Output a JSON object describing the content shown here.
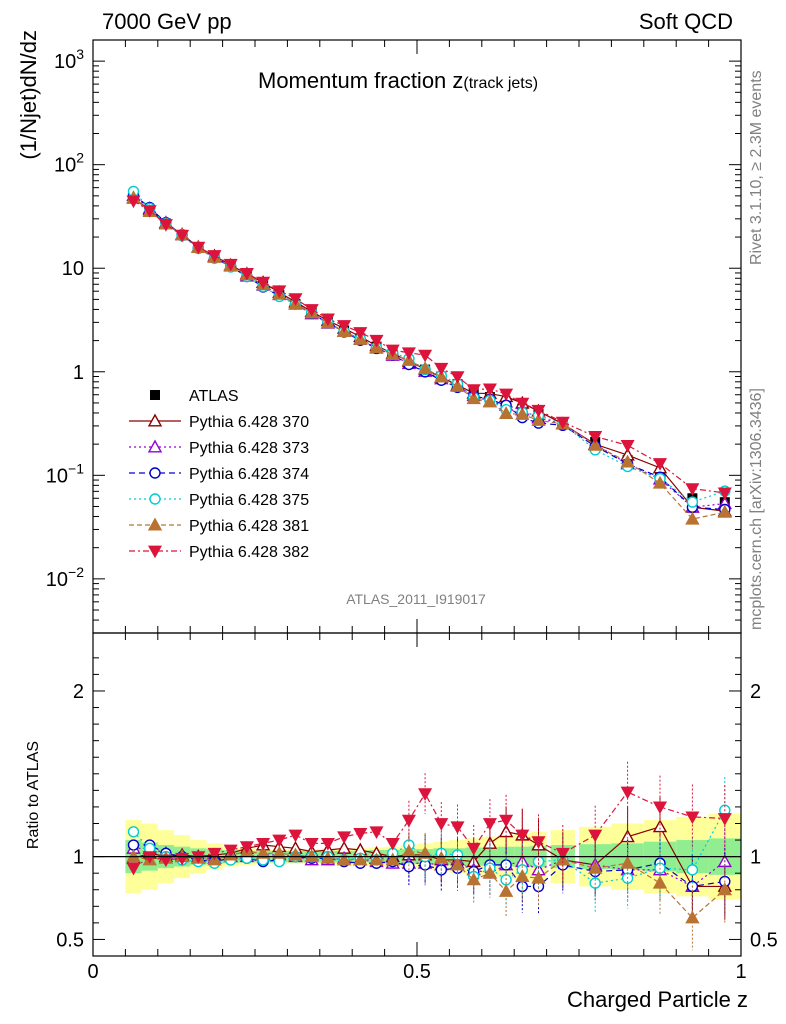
{
  "header": {
    "left": "7000 GeV pp",
    "right": "Soft QCD"
  },
  "side": {
    "rivet": "Rivet 3.1.10, ≥ 2.3M events",
    "source": "mcplots.cern.ch [arXiv:1306.3436]"
  },
  "chart_data": [
    {
      "type": "scatter",
      "panel": "main",
      "title_main": "Momentum fraction z",
      "title_sub": "(track jets)",
      "ylabel": "(1/Njet)dN/dz",
      "yscale": "log",
      "ylim": [
        0.003,
        1600
      ],
      "xlim": [
        0,
        1.0
      ],
      "y_ticks": [
        {
          "v": 0.01,
          "base": "10",
          "exp": "−2"
        },
        {
          "v": 0.1,
          "base": "10",
          "exp": "−1"
        },
        {
          "v": 1,
          "base": "1",
          "exp": ""
        },
        {
          "v": 10,
          "base": "10",
          "exp": ""
        },
        {
          "v": 100,
          "base": "10",
          "exp": "2"
        },
        {
          "v": 1000,
          "base": "10",
          "exp": "3"
        }
      ],
      "watermark": "ATLAS_2011_I919017",
      "x": [
        0.0625,
        0.0875,
        0.1125,
        0.1375,
        0.1625,
        0.1875,
        0.2125,
        0.2375,
        0.2625,
        0.2875,
        0.3125,
        0.3375,
        0.3625,
        0.3875,
        0.4125,
        0.4375,
        0.4625,
        0.4875,
        0.5125,
        0.5375,
        0.5625,
        0.5875,
        0.6125,
        0.6375,
        0.6625,
        0.6875,
        0.725,
        0.775,
        0.825,
        0.875,
        0.925,
        0.975
      ],
      "data": {
        "name": "ATLAS",
        "values": [
          48.0,
          36.0,
          27.0,
          21.0,
          16.0,
          13.0,
          10.5,
          8.4,
          6.8,
          5.5,
          4.5,
          3.7,
          3.0,
          2.5,
          2.1,
          1.75,
          1.5,
          1.25,
          1.05,
          0.9,
          0.76,
          0.64,
          0.57,
          0.5,
          0.44,
          0.39,
          0.32,
          0.21,
          0.14,
          0.1,
          0.06,
          0.055
        ],
        "band_inner": [
          0.1,
          0.085,
          0.07,
          0.06,
          0.05,
          0.045,
          0.04,
          0.035,
          0.035,
          0.035,
          0.035,
          0.035,
          0.035,
          0.035,
          0.035,
          0.04,
          0.04,
          0.045,
          0.045,
          0.05,
          0.05,
          0.055,
          0.055,
          0.06,
          0.06,
          0.065,
          0.07,
          0.075,
          0.08,
          0.09,
          0.1,
          0.11
        ],
        "band_outer": [
          0.22,
          0.2,
          0.16,
          0.13,
          0.1,
          0.08,
          0.06,
          0.05,
          0.045,
          0.045,
          0.045,
          0.045,
          0.045,
          0.05,
          0.05,
          0.055,
          0.06,
          0.07,
          0.08,
          0.09,
          0.1,
          0.11,
          0.12,
          0.13,
          0.14,
          0.15,
          0.16,
          0.18,
          0.2,
          0.22,
          0.24,
          0.26
        ]
      },
      "series": [
        {
          "name": "Pythia 6.428 370",
          "color": "#8b0000",
          "marker": "triangle-open",
          "dash": "",
          "ratio": [
            0.99,
            1.02,
            1.0,
            1.01,
            1.0,
            1.01,
            1.02,
            1.05,
            1.07,
            1.06,
            1.05,
            1.03,
            1.04,
            1.05,
            1.04,
            1.02,
            1.0,
            1.01,
            1.01,
            0.98,
            0.98,
            0.97,
            1.08,
            1.15,
            1.13,
            1.07,
            0.98,
            0.95,
            1.12,
            1.18,
            0.82,
            0.82
          ]
        },
        {
          "name": "Pythia 6.428 373",
          "color": "#9400d3",
          "marker": "triangle-open",
          "dash": "2,3",
          "ratio": [
            1.05,
            1.05,
            1.02,
            1.0,
            0.99,
            0.99,
            1.0,
            1.0,
            1.01,
            1.01,
            1.0,
            0.98,
            0.98,
            0.99,
            0.98,
            0.97,
            0.96,
            0.96,
            0.96,
            0.95,
            0.96,
            0.92,
            0.9,
            0.95,
            0.97,
            0.92,
            0.98,
            0.95,
            0.92,
            0.92,
            0.82,
            0.97
          ]
        },
        {
          "name": "Pythia 6.428 374",
          "color": "#0000cd",
          "marker": "circle-open",
          "dash": "6,4",
          "ratio": [
            1.07,
            1.07,
            1.02,
            1.0,
            0.98,
            0.97,
            0.99,
            0.99,
            0.97,
            0.98,
            1.0,
            0.99,
            0.99,
            0.97,
            0.96,
            0.96,
            0.97,
            0.94,
            0.95,
            0.92,
            0.93,
            0.91,
            0.95,
            0.95,
            0.82,
            0.82,
            0.95,
            0.91,
            0.92,
            0.96,
            0.82,
            0.85
          ]
        },
        {
          "name": "Pythia 6.428 375",
          "color": "#00ced1",
          "marker": "circle-open",
          "dash": "2,3",
          "ratio": [
            1.15,
            1.05,
            1.0,
            0.98,
            0.97,
            0.96,
            0.98,
            0.99,
            0.98,
            0.97,
            1.0,
            1.0,
            1.0,
            0.98,
            0.99,
            0.98,
            1.02,
            1.07,
            1.0,
            1.02,
            1.01,
            0.88,
            0.93,
            0.86,
            0.92,
            0.97,
            0.98,
            0.84,
            0.87,
            0.93,
            0.92,
            1.28
          ]
        },
        {
          "name": "Pythia 6.428 381",
          "color": "#b87333",
          "marker": "triangle-filled",
          "dash": "5,3",
          "ratio": [
            1.0,
            0.98,
            0.99,
            1.0,
            0.99,
            0.98,
            1.01,
            1.03,
            1.02,
            1.02,
            1.01,
            1.0,
            0.99,
            0.98,
            0.98,
            0.98,
            0.98,
            1.03,
            1.02,
            0.99,
            0.95,
            0.86,
            0.9,
            0.79,
            0.88,
            0.87,
            0.98,
            0.93,
            0.96,
            0.84,
            0.63,
            0.8
          ]
        },
        {
          "name": "Pythia 6.428 382",
          "color": "#dc143c",
          "marker": "triangle-down-filled",
          "dash": "6,3,2,3",
          "ratio": [
            0.93,
            1.0,
            0.98,
            0.99,
            1.0,
            1.02,
            1.04,
            1.06,
            1.08,
            1.1,
            1.13,
            1.08,
            1.08,
            1.12,
            1.14,
            1.15,
            1.08,
            1.22,
            1.38,
            1.2,
            1.18,
            1.05,
            1.2,
            1.22,
            1.13,
            1.09,
            1.02,
            1.13,
            1.39,
            1.3,
            1.24,
            1.23
          ]
        }
      ]
    },
    {
      "type": "scatter",
      "panel": "ratio",
      "ylabel": "Ratio to ATLAS",
      "xlabel": "Charged Particle z",
      "ylim": [
        0.4,
        2.35
      ],
      "xlim": [
        0,
        1.0
      ],
      "y_ticks": [
        {
          "v": 0.5,
          "label": "0.5"
        },
        {
          "v": 1,
          "label": "1"
        },
        {
          "v": 2,
          "label": "2"
        }
      ],
      "x_ticks": [
        {
          "v": 0,
          "label": "0"
        },
        {
          "v": 0.5,
          "label": "0.5"
        },
        {
          "v": 1,
          "label": "1"
        }
      ]
    }
  ]
}
